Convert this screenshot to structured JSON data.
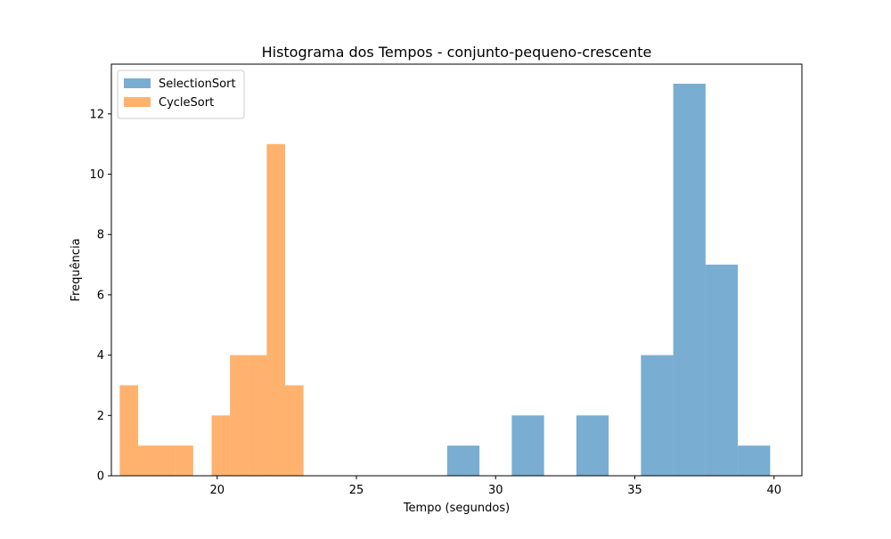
{
  "chart_data": {
    "type": "bar",
    "title": "Histograma dos Tempos - conjunto-pequeno-crescente",
    "xlabel": "Tempo (segundos)",
    "ylabel": "Frequência",
    "xlim": [
      16.2,
      41.0
    ],
    "ylim": [
      0,
      13.65
    ],
    "xticks": [
      20,
      25,
      30,
      35,
      40
    ],
    "yticks": [
      0,
      2,
      4,
      6,
      8,
      10,
      12
    ],
    "grid": false,
    "legend_position": "top-left",
    "series": [
      {
        "name": "SelectionSort",
        "color": "#1f77b4",
        "opacity": 0.6,
        "bin_edges": [
          28.26,
          29.42,
          30.58,
          31.74,
          32.9,
          34.06,
          35.22,
          36.38,
          37.54,
          38.7,
          39.86
        ],
        "counts": [
          1,
          0,
          2,
          0,
          2,
          0,
          4,
          13,
          7,
          1
        ]
      },
      {
        "name": "CycleSort",
        "color": "#ff7f0e",
        "opacity": 0.6,
        "bin_edges": [
          16.5,
          17.16,
          17.82,
          18.48,
          19.14,
          19.8,
          20.46,
          21.12,
          21.78,
          22.44,
          23.1
        ],
        "counts": [
          3,
          1,
          1,
          1,
          0,
          2,
          4,
          4,
          11,
          3
        ]
      }
    ]
  }
}
